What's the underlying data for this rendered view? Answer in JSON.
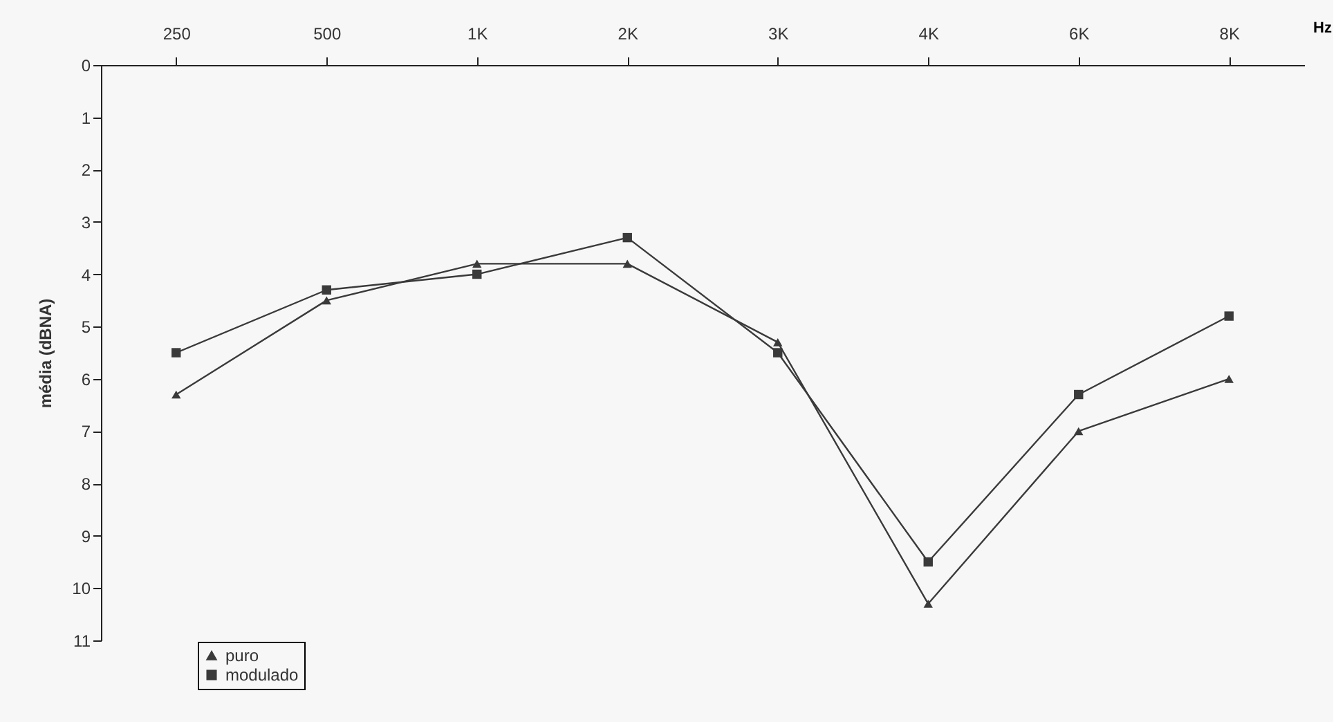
{
  "chart_data": {
    "type": "line",
    "xlabel": "Hz",
    "ylabel": "média (dBNA)",
    "categories": [
      "250",
      "500",
      "1K",
      "2K",
      "3K",
      "4K",
      "6K",
      "8K"
    ],
    "series": [
      {
        "name": "puro",
        "color": "#3a3a3a",
        "marker": "triangle",
        "values": [
          6.3,
          4.5,
          3.8,
          3.8,
          5.3,
          10.3,
          7.0,
          6.0
        ]
      },
      {
        "name": "modulado",
        "color": "#3a3a3a",
        "marker": "square",
        "values": [
          5.5,
          4.3,
          4.0,
          3.3,
          5.5,
          9.5,
          6.3,
          4.8
        ]
      }
    ],
    "ylim": [
      11,
      0
    ],
    "yticks": [
      0,
      1,
      2,
      3,
      4,
      5,
      6,
      7,
      8,
      9,
      10,
      11
    ],
    "grid": false,
    "legend": "bottom left",
    "line_style": "solid"
  }
}
